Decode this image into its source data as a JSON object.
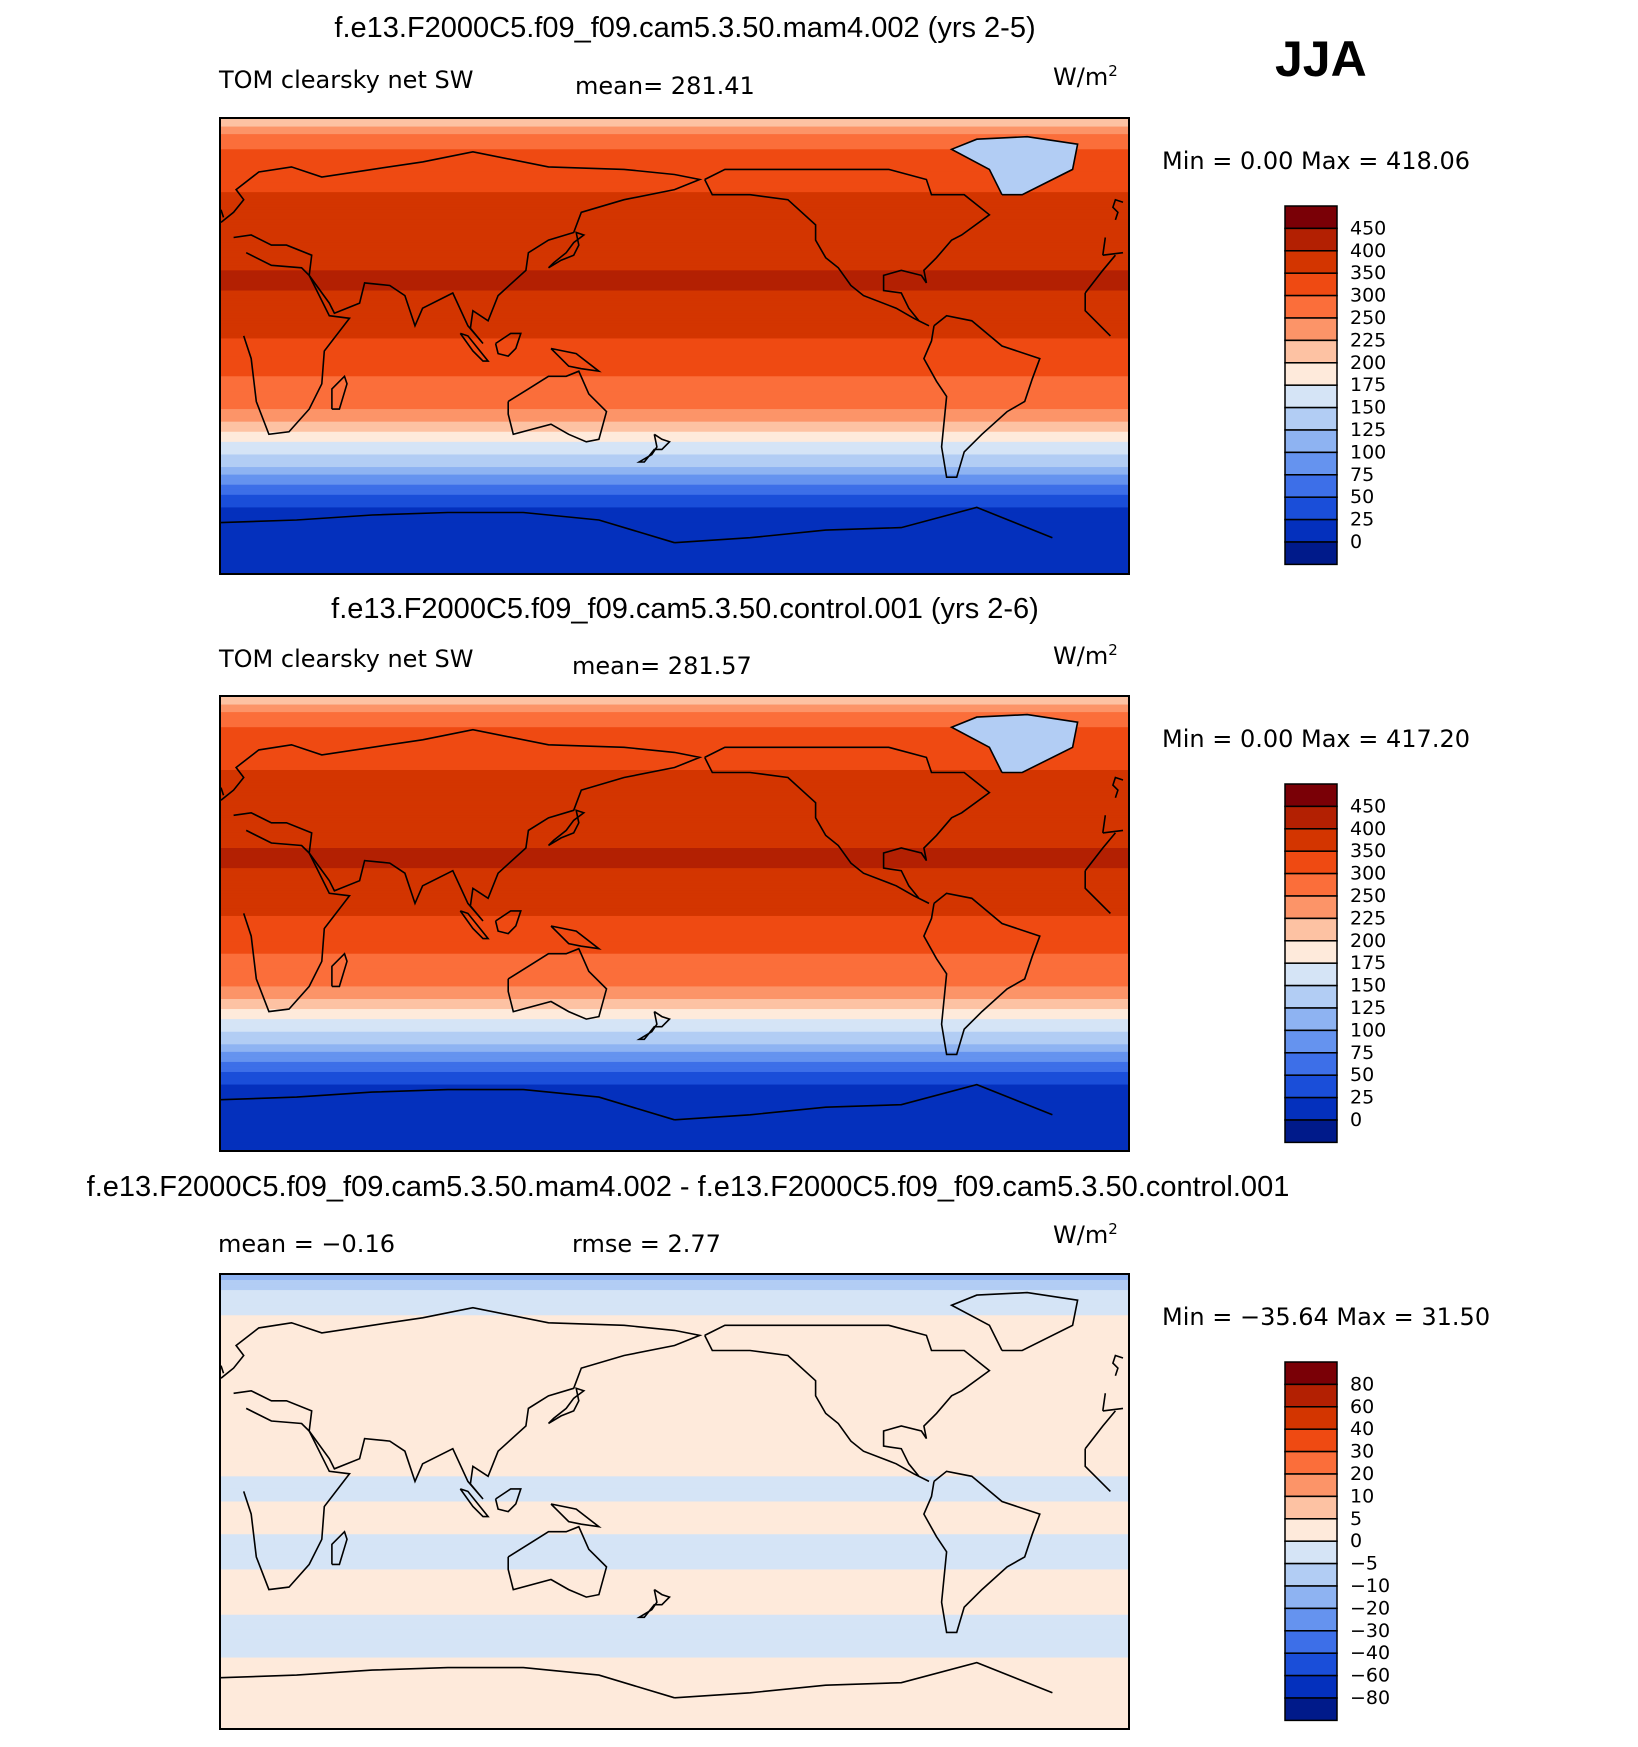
{
  "season": "JJA",
  "panels": [
    {
      "title": "f.e13.F2000C5.f09_f09.cam5.3.50.mam4.002 (yrs 2-5)",
      "variable": "TOM clearsky net SW",
      "stat1": "mean=  281.41",
      "stat2": "",
      "units_base": "W/m",
      "units_exp": "2",
      "minmax": "Min  =      0.00  Max  =  418.06",
      "colorbar": {
        "labels": [
          "450",
          "400",
          "350",
          "300",
          "250",
          "225",
          "200",
          "175",
          "150",
          "125",
          "100",
          "75",
          "50",
          "25",
          "0"
        ],
        "colors": [
          "#7a0006",
          "#b32002",
          "#d33500",
          "#ef4a12",
          "#fb6e3a",
          "#fc9468",
          "#fdc2a3",
          "#feeadb",
          "#d5e4f6",
          "#b2cdf4",
          "#8eb3f2",
          "#6593ef",
          "#3d6fe8",
          "#1a4ed9",
          "#0430bd",
          "#001a8a"
        ]
      },
      "field": {
        "levels": [
          450,
          400,
          350,
          300,
          250,
          225,
          200,
          175,
          150,
          125,
          100,
          75,
          50,
          25,
          0
        ],
        "colors": [
          "#7a0006",
          "#b32002",
          "#d33500",
          "#ef4a12",
          "#fb6e3a",
          "#fc9468",
          "#fdc2a3",
          "#feeadb",
          "#d5e4f6",
          "#b2cdf4",
          "#8eb3f2",
          "#6593ef",
          "#3d6fe8",
          "#1a4ed9",
          "#0430bd",
          "#001a8a"
        ],
        "zonal_bands": [
          {
            "lat": 90,
            "value": 200
          },
          {
            "lat": 85,
            "value": 240
          },
          {
            "lat": 80,
            "value": 290
          },
          {
            "lat": 70,
            "value": 335
          },
          {
            "lat": 55,
            "value": 360
          },
          {
            "lat": 40,
            "value": 390
          },
          {
            "lat": 25,
            "value": 405
          },
          {
            "lat": 12,
            "value": 380
          },
          {
            "lat": 0,
            "value": 340
          },
          {
            "lat": -12,
            "value": 300
          },
          {
            "lat": -22,
            "value": 265
          },
          {
            "lat": -30,
            "value": 225
          },
          {
            "lat": -35,
            "value": 190
          },
          {
            "lat": -40,
            "value": 165
          },
          {
            "lat": -45,
            "value": 140
          },
          {
            "lat": -50,
            "value": 110
          },
          {
            "lat": -55,
            "value": 75
          },
          {
            "lat": -60,
            "value": 45
          },
          {
            "lat": -65,
            "value": 20
          },
          {
            "lat": -90,
            "value": 0
          }
        ]
      }
    },
    {
      "title": "f.e13.F2000C5.f09_f09.cam5.3.50.control.001 (yrs 2-6)",
      "variable": "TOM clearsky net SW",
      "stat1": "mean=  281.57",
      "stat2": "",
      "units_base": "W/m",
      "units_exp": "2",
      "minmax": "Min  =      0.00  Max  =  417.20",
      "colorbar": {
        "labels": [
          "450",
          "400",
          "350",
          "300",
          "250",
          "225",
          "200",
          "175",
          "150",
          "125",
          "100",
          "75",
          "50",
          "25",
          "0"
        ],
        "colors": [
          "#7a0006",
          "#b32002",
          "#d33500",
          "#ef4a12",
          "#fb6e3a",
          "#fc9468",
          "#fdc2a3",
          "#feeadb",
          "#d5e4f6",
          "#b2cdf4",
          "#8eb3f2",
          "#6593ef",
          "#3d6fe8",
          "#1a4ed9",
          "#0430bd",
          "#001a8a"
        ]
      },
      "field": {
        "levels": [
          450,
          400,
          350,
          300,
          250,
          225,
          200,
          175,
          150,
          125,
          100,
          75,
          50,
          25,
          0
        ],
        "colors": [
          "#7a0006",
          "#b32002",
          "#d33500",
          "#ef4a12",
          "#fb6e3a",
          "#fc9468",
          "#fdc2a3",
          "#feeadb",
          "#d5e4f6",
          "#b2cdf4",
          "#8eb3f2",
          "#6593ef",
          "#3d6fe8",
          "#1a4ed9",
          "#0430bd",
          "#001a8a"
        ],
        "zonal_bands": [
          {
            "lat": 90,
            "value": 200
          },
          {
            "lat": 85,
            "value": 240
          },
          {
            "lat": 80,
            "value": 290
          },
          {
            "lat": 70,
            "value": 335
          },
          {
            "lat": 55,
            "value": 360
          },
          {
            "lat": 40,
            "value": 390
          },
          {
            "lat": 25,
            "value": 405
          },
          {
            "lat": 12,
            "value": 380
          },
          {
            "lat": 0,
            "value": 340
          },
          {
            "lat": -12,
            "value": 300
          },
          {
            "lat": -22,
            "value": 265
          },
          {
            "lat": -30,
            "value": 225
          },
          {
            "lat": -35,
            "value": 190
          },
          {
            "lat": -40,
            "value": 165
          },
          {
            "lat": -45,
            "value": 140
          },
          {
            "lat": -50,
            "value": 110
          },
          {
            "lat": -55,
            "value": 75
          },
          {
            "lat": -60,
            "value": 45
          },
          {
            "lat": -65,
            "value": 20
          },
          {
            "lat": -90,
            "value": 0
          }
        ]
      }
    },
    {
      "title": "f.e13.F2000C5.f09_f09.cam5.3.50.mam4.002 - f.e13.F2000C5.f09_f09.cam5.3.50.control.001",
      "variable": "",
      "stat1": "mean  =    −0.16",
      "stat2": "rmse  =     2.77",
      "units_base": "W/m",
      "units_exp": "2",
      "minmax": "Min  = −35.64  Max  =    31.50",
      "colorbar": {
        "labels": [
          "80",
          "60",
          "40",
          "30",
          "20",
          "10",
          "5",
          "0",
          "−5",
          "−10",
          "−20",
          "−30",
          "−40",
          "−60",
          "−80"
        ],
        "colors": [
          "#7a0006",
          "#b32002",
          "#d33500",
          "#ef4a12",
          "#fb6e3a",
          "#fc9468",
          "#fdc2a3",
          "#feeadb",
          "#d5e4f6",
          "#b2cdf4",
          "#8eb3f2",
          "#6593ef",
          "#3d6fe8",
          "#1a4ed9",
          "#0430bd",
          "#001a8a"
        ]
      },
      "field": {
        "levels": [
          80,
          60,
          40,
          30,
          20,
          10,
          5,
          0,
          -5,
          -10,
          -20,
          -30,
          -40,
          -60,
          -80
        ],
        "colors": [
          "#7a0006",
          "#b32002",
          "#d33500",
          "#ef4a12",
          "#fb6e3a",
          "#fc9468",
          "#fdc2a3",
          "#feeadb",
          "#d5e4f6",
          "#b2cdf4",
          "#8eb3f2",
          "#6593ef",
          "#3d6fe8",
          "#1a4ed9",
          "#0430bd",
          "#001a8a"
        ],
        "zonal_bands": [
          {
            "lat": 90,
            "value": -12
          },
          {
            "lat": 86,
            "value": -7
          },
          {
            "lat": 82,
            "value": -2
          },
          {
            "lat": 65,
            "value": 2
          },
          {
            "lat": 40,
            "value": 1
          },
          {
            "lat": 20,
            "value": 2
          },
          {
            "lat": 5,
            "value": -1
          },
          {
            "lat": -5,
            "value": 1
          },
          {
            "lat": -20,
            "value": -1
          },
          {
            "lat": -35,
            "value": 1
          },
          {
            "lat": -55,
            "value": -1
          },
          {
            "lat": -70,
            "value": 1
          },
          {
            "lat": -90,
            "value": 1
          }
        ]
      }
    }
  ]
}
